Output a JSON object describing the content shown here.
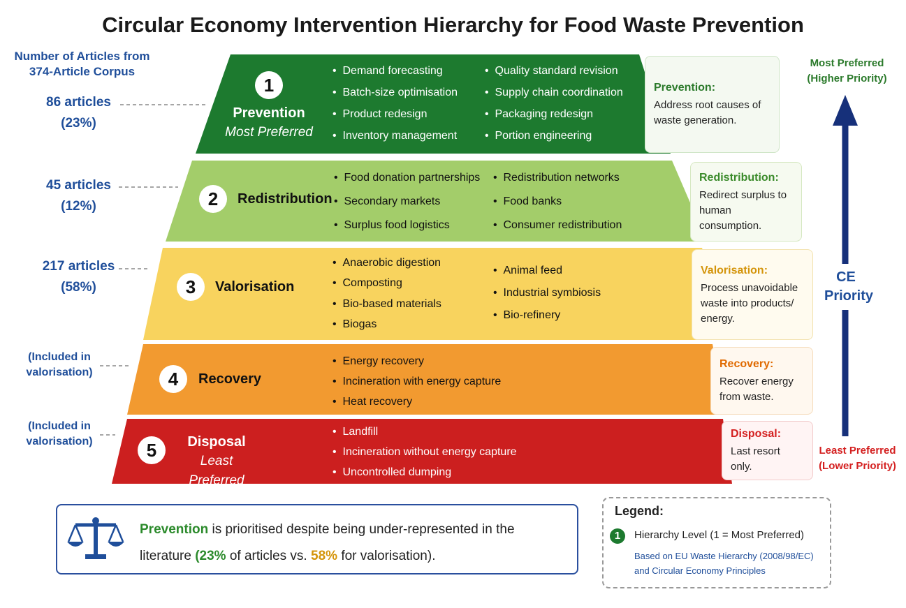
{
  "title": "Circular Economy Intervention Hierarchy for Food Waste Prevention",
  "left_header": "Number of Articles from 374-Article Corpus",
  "levels": [
    {
      "number": "1",
      "name": "Prevention",
      "sub": "Most Preferred",
      "count": "86 articles",
      "share": "(23%)",
      "items_left": [
        "Demand forecasting",
        "Batch-size optimisation",
        "Product redesign",
        "Inventory management"
      ],
      "items_right": [
        "Quality standard revision",
        "Supply chain coordination",
        "Packaging redesign",
        "Portion engineering"
      ],
      "desc_title": "Prevention:",
      "desc": "Address root causes of waste generation."
    },
    {
      "number": "2",
      "name": "Redistribution",
      "count": "45 articles",
      "share": "(12%)",
      "items_left": [
        "Food donation partnerships",
        "Secondary markets",
        "Surplus food logistics"
      ],
      "items_right": [
        "Redistribution networks",
        "Food banks",
        "Consumer redistribution"
      ],
      "desc_title": "Redistribution:",
      "desc": "Redirect surplus to human consumption."
    },
    {
      "number": "3",
      "name": "Valorisation",
      "count": "217 articles",
      "share": "(58%)",
      "items_left": [
        "Anaerobic digestion",
        "Composting",
        "Bio-based materials",
        "Biogas"
      ],
      "items_right": [
        "Animal feed",
        "Industrial symbiosis",
        "Bio-refinery"
      ],
      "desc_title": "Valorisation:",
      "desc": "Process unavoidable waste into products/ energy."
    },
    {
      "number": "4",
      "name": "Recovery",
      "count": "(Included in valorisation)",
      "items_left": [
        "Energy recovery",
        "Incineration with energy capture",
        "Heat recovery"
      ],
      "desc_title": "Recovery:",
      "desc": "Recover energy from waste."
    },
    {
      "number": "5",
      "name": "Disposal",
      "sub": "Least Preferred",
      "count": "(Included in valorisation)",
      "items_left": [
        "Landfill",
        "Incineration without energy capture",
        "Uncontrolled dumping"
      ],
      "desc_title": "Disposal:",
      "desc": "Last resort only."
    }
  ],
  "axis": {
    "top": "Most Preferred",
    "top_sub": "(Higher Priority)",
    "middle": "CE Priority",
    "bottom": "Least Preferred",
    "bottom_sub": "(Lower Priority)"
  },
  "callout": {
    "highlight": "Prevention",
    "text1": "is prioritised despite being under-represented in the literature",
    "pct_a": "(23%",
    "text2": "of articles vs.",
    "pct_b": "58%",
    "text3": "for valorisation)."
  },
  "legend": {
    "title": "Legend:",
    "badge": "1",
    "item": "Hierarchy Level (1 = Most Preferred)",
    "note": "Based on EU Waste Hierarchy (2008/98/EC) and Circular Economy Principles"
  }
}
